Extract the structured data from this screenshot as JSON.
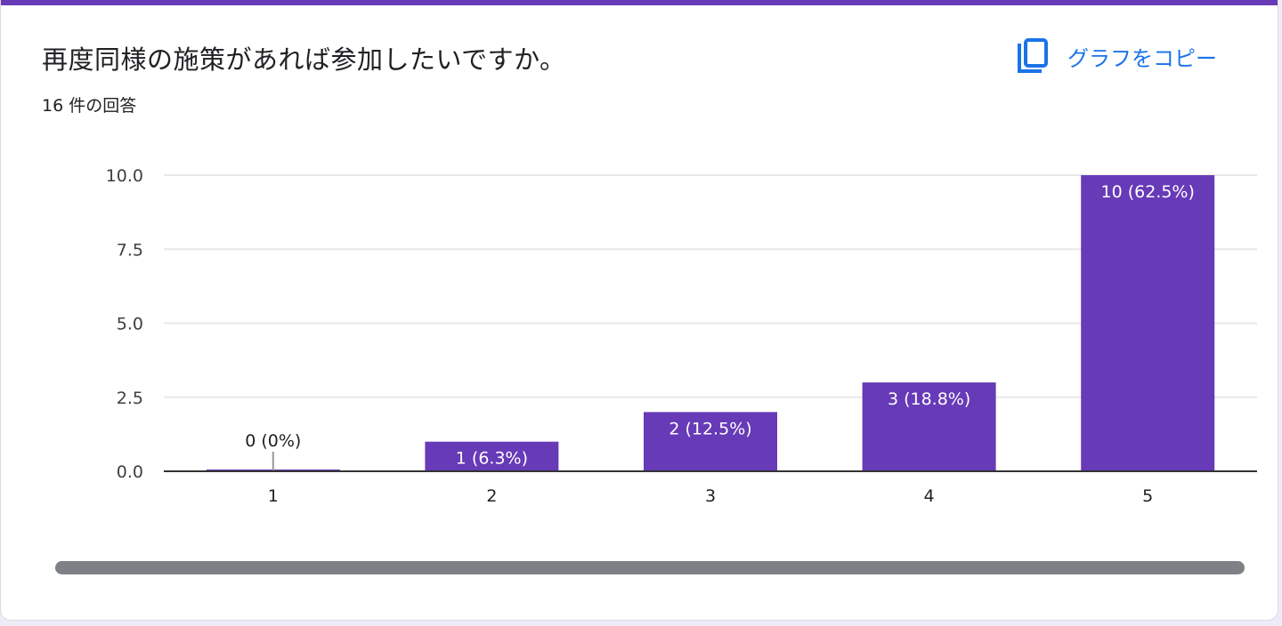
{
  "question": {
    "title": "再度同様の施策があれば参加したいですか。",
    "response_count": "16 件の回答"
  },
  "actions": {
    "copy_chart_label": "グラフをコピー",
    "copy_icon": "copy-icon"
  },
  "colors": {
    "accent": "#673ab7",
    "bar": "#673ab7",
    "link": "#1a73e8"
  },
  "chart_data": {
    "type": "bar",
    "categories": [
      "1",
      "2",
      "3",
      "4",
      "5"
    ],
    "values": [
      0,
      1,
      2,
      3,
      10
    ],
    "data_labels": [
      "0 (0%)",
      "1 (6.3%)",
      "2 (12.5%)",
      "3 (18.8%)",
      "10 (62.5%)"
    ],
    "y_ticks": [
      "0.0",
      "2.5",
      "5.0",
      "7.5",
      "10.0"
    ],
    "ylim": [
      0,
      10
    ],
    "grid": true,
    "legend": "none"
  }
}
